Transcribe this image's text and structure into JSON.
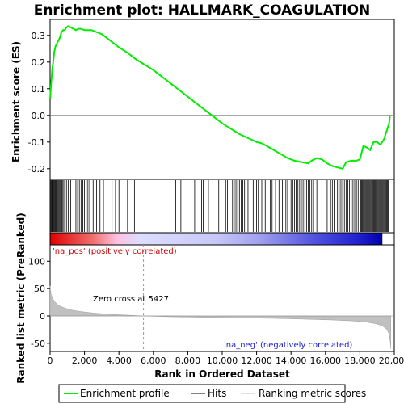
{
  "chart_data": {
    "type": "line",
    "title": "Enrichment plot: HALLMARK_COAGULATION",
    "xlabel": "Rank in Ordered Dataset",
    "ylabel_top": "Enrichment score (ES)",
    "ylabel_bottom": "Ranked list metric (PreRanked)",
    "xlim": [
      0,
      20000
    ],
    "x_ticks": [
      0,
      2000,
      4000,
      6000,
      8000,
      10000,
      12000,
      14000,
      16000,
      18000,
      20000
    ],
    "x_tick_labels": [
      "0",
      "2,000",
      "4,000",
      "6,000",
      "8,000",
      "10,000",
      "12,000",
      "14,000",
      "16,000",
      "18,000",
      "20,000"
    ],
    "es_ylim": [
      -0.24,
      0.36
    ],
    "es_ticks": [
      -0.2,
      -0.1,
      0.0,
      0.1,
      0.2,
      0.3
    ],
    "es_tick_labels": [
      "-0.2",
      "-0.1",
      "0.0",
      "0.1",
      "0.2",
      "0.3"
    ],
    "metric_ylim": [
      -65,
      130
    ],
    "metric_ticks": [
      -50,
      0,
      50,
      100
    ],
    "metric_tick_labels": [
      "-50",
      "0",
      "50",
      "100"
    ],
    "zero_cross_rank": 5427,
    "total_ranks": 19800,
    "annotations": {
      "zero_cross": "Zero cross at 5427",
      "pos_label": "'na_pos' (positively correlated)",
      "neg_label": "'na_neg' (negatively correlated)"
    },
    "series": [
      {
        "name": "Enrichment profile",
        "color": "#00ee00",
        "x": [
          0,
          60,
          120,
          180,
          250,
          320,
          400,
          480,
          560,
          650,
          750,
          850,
          950,
          1050,
          1200,
          1350,
          1500,
          1650,
          1800,
          2000,
          2200,
          2400,
          2600,
          2800,
          3000,
          3300,
          3600,
          4000,
          4500,
          5000,
          5500,
          6000,
          6500,
          7000,
          7500,
          8000,
          8500,
          9000,
          9500,
          10000,
          10500,
          11000,
          11500,
          12000,
          12300,
          12600,
          13000,
          13400,
          13800,
          14200,
          14600,
          15000,
          15200,
          15500,
          15800,
          16100,
          16400,
          16700,
          17000,
          17200,
          17500,
          17800,
          18000,
          18200,
          18400,
          18600,
          18800,
          19000,
          19200,
          19400,
          19500,
          19600,
          19700,
          19750
        ],
        "y": [
          0.06,
          0.12,
          0.17,
          0.2,
          0.24,
          0.26,
          0.27,
          0.28,
          0.29,
          0.31,
          0.32,
          0.32,
          0.33,
          0.335,
          0.33,
          0.325,
          0.32,
          0.325,
          0.325,
          0.32,
          0.32,
          0.32,
          0.315,
          0.31,
          0.305,
          0.29,
          0.275,
          0.255,
          0.235,
          0.21,
          0.19,
          0.17,
          0.145,
          0.12,
          0.095,
          0.07,
          0.045,
          0.02,
          -0.005,
          -0.03,
          -0.05,
          -0.07,
          -0.085,
          -0.1,
          -0.105,
          -0.115,
          -0.13,
          -0.145,
          -0.16,
          -0.17,
          -0.175,
          -0.18,
          -0.17,
          -0.16,
          -0.165,
          -0.18,
          -0.19,
          -0.195,
          -0.2,
          -0.175,
          -0.17,
          -0.17,
          -0.165,
          -0.115,
          -0.12,
          -0.13,
          -0.1,
          -0.1,
          -0.11,
          -0.09,
          -0.07,
          -0.05,
          -0.03,
          0.0
        ]
      },
      {
        "name": "Hits",
        "color": "#000000",
        "hits": [
          20,
          60,
          100,
          140,
          180,
          220,
          260,
          300,
          340,
          380,
          420,
          470,
          520,
          570,
          620,
          680,
          740,
          800,
          870,
          950,
          1050,
          1200,
          1500,
          1600,
          1700,
          1800,
          1900,
          2000,
          2100,
          2200,
          2300,
          2500,
          2700,
          2900,
          3100,
          3600,
          3800,
          4000,
          4300,
          4500,
          4900,
          7300,
          7600,
          8400,
          8800,
          8900,
          9200,
          9700,
          9800,
          10200,
          10300,
          10600,
          10700,
          10800,
          10900,
          11000,
          11100,
          11200,
          11300,
          11500,
          11800,
          12000,
          12100,
          12300,
          12500,
          12800,
          12900,
          13100,
          13300,
          13500,
          13700,
          13800,
          14000,
          14100,
          14200,
          14300,
          14400,
          14500,
          14600,
          14700,
          14800,
          14900,
          15000,
          15100,
          15200,
          15300,
          15500,
          15800,
          16100,
          16300,
          16400,
          16500,
          16700,
          16800,
          16900,
          17000,
          17100,
          17200,
          17300,
          17400,
          17500,
          17600,
          17700,
          17800,
          17900,
          18000,
          18050,
          18100,
          18150,
          18200,
          18250,
          18300,
          18350,
          18400,
          18450,
          18500,
          18550,
          18600,
          18650,
          18700,
          18750,
          18800,
          18850,
          18900,
          18950,
          19000,
          19050,
          19100,
          19150,
          19200,
          19250,
          19300,
          19350,
          19400,
          19450,
          19500,
          19550,
          19600,
          19650,
          19700
        ]
      },
      {
        "name": "Ranking metric scores",
        "color": "#c0c0c0",
        "x": [
          0,
          50,
          150,
          300,
          500,
          800,
          1200,
          1800,
          2500,
          3500,
          4500,
          5427,
          7000,
          9000,
          11000,
          13000,
          15000,
          16500,
          17500,
          18300,
          18900,
          19300,
          19550,
          19700,
          19780,
          19800
        ],
        "y": [
          55,
          40,
          32,
          25,
          19,
          15,
          11,
          8,
          5.5,
          3,
          1.5,
          0,
          -1.5,
          -2.5,
          -3.5,
          -4.5,
          -6,
          -7.5,
          -9,
          -11,
          -14,
          -18,
          -24,
          -33,
          -50,
          -60
        ]
      }
    ],
    "legend": {
      "placement": "bottom",
      "items": [
        "Enrichment profile",
        "Hits",
        "Ranking metric scores"
      ]
    }
  }
}
